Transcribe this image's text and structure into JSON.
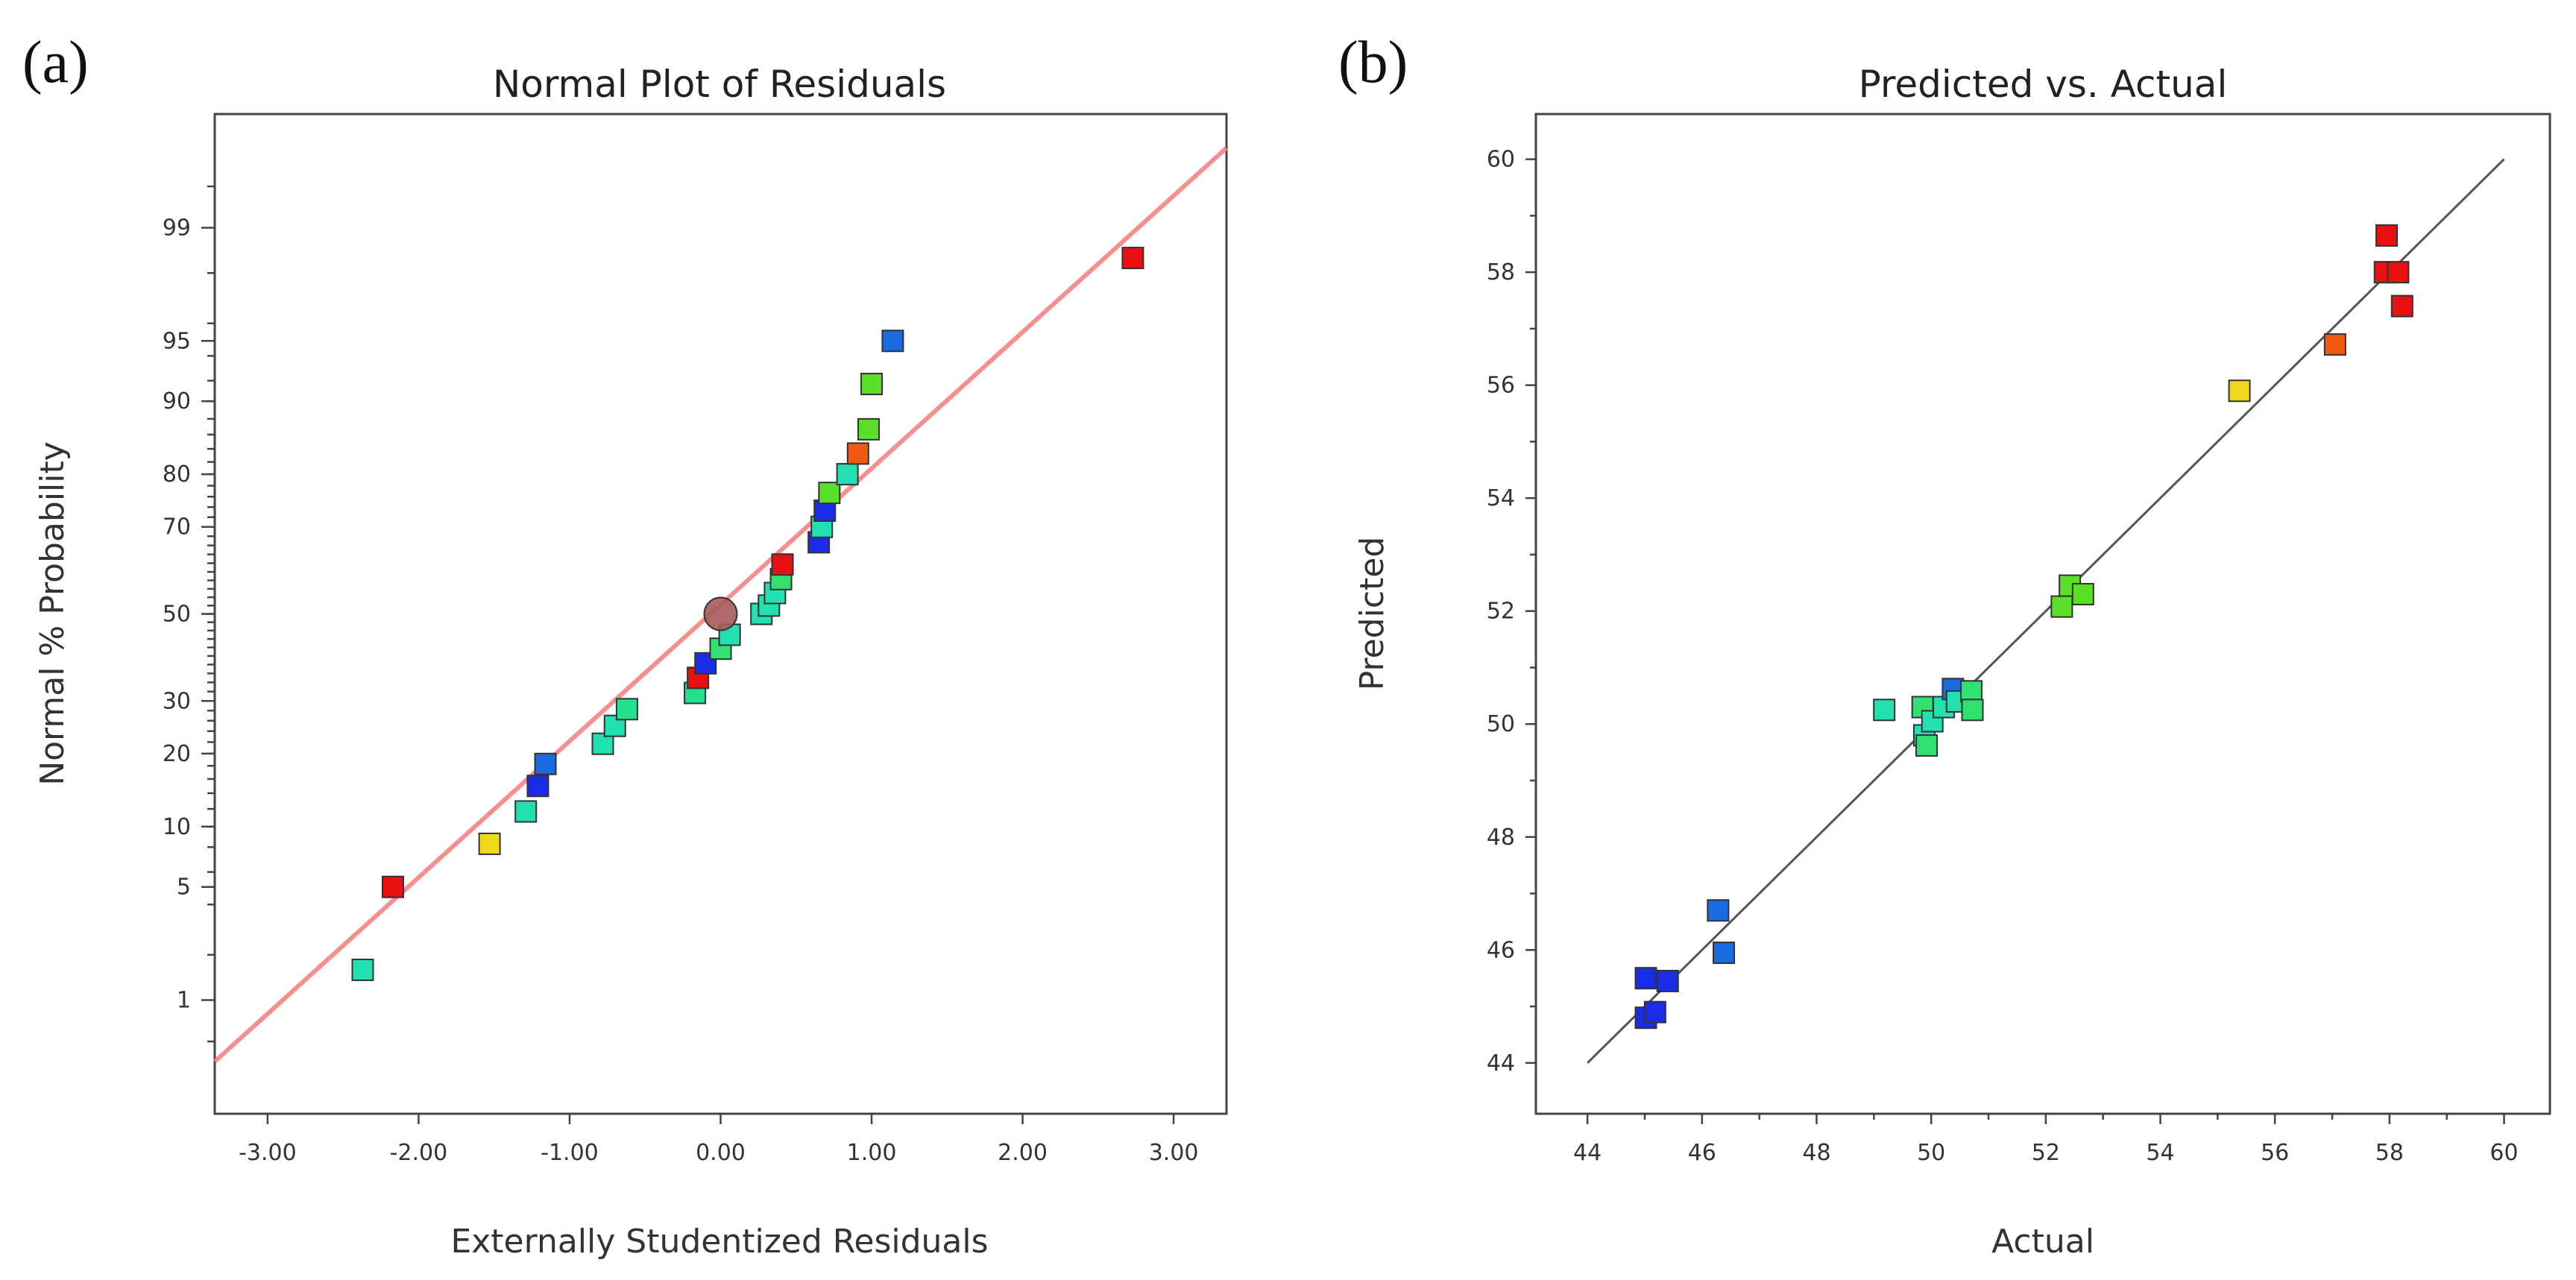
{
  "figure": {
    "panels": [
      {
        "label": "(a)",
        "chart_data": {
          "type": "scatter",
          "title": "Normal Plot of Residuals",
          "xlabel": "Externally Studentized Residuals",
          "ylabel": "Normal % Probability",
          "xlim": [
            -3.35,
            3.35
          ],
          "ylim": [
            0.13,
            99.87
          ],
          "y_scale": "normal-probability",
          "x_ticks": [
            -3,
            -2,
            -1,
            0,
            1,
            2,
            3
          ],
          "x_tick_labels": [
            "-3.00",
            "-2.00",
            "-1.00",
            "0.00",
            "1.00",
            "2.00",
            "3.00"
          ],
          "y_ticks": [
            1,
            5,
            10,
            20,
            30,
            50,
            70,
            80,
            90,
            95,
            99
          ],
          "y_tick_labels": [
            "1",
            "5",
            "10",
            "20",
            "30",
            "50",
            "70",
            "80",
            "90",
            "95",
            "99"
          ],
          "reference_line": {
            "color": "#f47c7c",
            "x": [
              -3.35,
              3.35
            ],
            "y": [
              0.35,
              99.75
            ]
          },
          "center_marker": {
            "x": 0.0,
            "y": 50,
            "color": "#a85a5a"
          },
          "points": [
            {
              "x": -2.37,
              "y": 1.6,
              "color": "#22e0b0"
            },
            {
              "x": -2.17,
              "y": 5.0,
              "color": "#e81010"
            },
            {
              "x": -1.53,
              "y": 8.3,
              "color": "#f2d81a"
            },
            {
              "x": -1.29,
              "y": 11.7,
              "color": "#22e0b0"
            },
            {
              "x": -1.21,
              "y": 15.0,
              "color": "#1a2ce6"
            },
            {
              "x": -1.16,
              "y": 18.3,
              "color": "#1a6ae0"
            },
            {
              "x": -0.78,
              "y": 21.7,
              "color": "#22e0b0"
            },
            {
              "x": -0.7,
              "y": 25.0,
              "color": "#22e0b0"
            },
            {
              "x": -0.62,
              "y": 28.3,
              "color": "#22e090"
            },
            {
              "x": -0.17,
              "y": 31.7,
              "color": "#22e090"
            },
            {
              "x": -0.15,
              "y": 35.0,
              "color": "#e81010"
            },
            {
              "x": -0.1,
              "y": 38.3,
              "color": "#1a2ce6"
            },
            {
              "x": 0.0,
              "y": 41.7,
              "color": "#30e070"
            },
            {
              "x": 0.06,
              "y": 45.0,
              "color": "#22e0b0"
            },
            {
              "x": 0.27,
              "y": 50.0,
              "color": "#22e0b0"
            },
            {
              "x": 0.32,
              "y": 52.0,
              "color": "#22e0b0"
            },
            {
              "x": 0.36,
              "y": 55.0,
              "color": "#22e0b0"
            },
            {
              "x": 0.4,
              "y": 58.3,
              "color": "#30e070"
            },
            {
              "x": 0.41,
              "y": 61.7,
              "color": "#e81010"
            },
            {
              "x": 0.65,
              "y": 66.7,
              "color": "#1a2ce6"
            },
            {
              "x": 0.67,
              "y": 70.0,
              "color": "#22e0b0"
            },
            {
              "x": 0.69,
              "y": 73.3,
              "color": "#1a2ce6"
            },
            {
              "x": 0.72,
              "y": 76.7,
              "color": "#5ae028"
            },
            {
              "x": 0.84,
              "y": 80.0,
              "color": "#22e0b0"
            },
            {
              "x": 0.91,
              "y": 83.3,
              "color": "#ef5a10"
            },
            {
              "x": 0.98,
              "y": 86.7,
              "color": "#5ae028"
            },
            {
              "x": 1.0,
              "y": 91.7,
              "color": "#5ae028"
            },
            {
              "x": 1.14,
              "y": 95.0,
              "color": "#1a6ae0"
            },
            {
              "x": 2.73,
              "y": 98.4,
              "color": "#e81010"
            }
          ]
        }
      },
      {
        "label": "(b)",
        "chart_data": {
          "type": "scatter",
          "title": "Predicted vs. Actual",
          "xlabel": "Actual",
          "ylabel": "Predicted",
          "xlim": [
            43.1,
            60.8
          ],
          "ylim": [
            43.1,
            60.8
          ],
          "x_ticks": [
            44,
            46,
            48,
            50,
            52,
            54,
            56,
            58,
            60
          ],
          "x_tick_labels": [
            "44",
            "46",
            "48",
            "50",
            "52",
            "54",
            "56",
            "58",
            "60"
          ],
          "y_ticks": [
            44,
            46,
            48,
            50,
            52,
            54,
            56,
            58,
            60
          ],
          "y_tick_labels": [
            "44",
            "46",
            "48",
            "50",
            "52",
            "54",
            "56",
            "58",
            "60"
          ],
          "reference_line": {
            "color": "#555555",
            "x": [
              44,
              60
            ],
            "y": [
              44,
              60
            ]
          },
          "points": [
            {
              "x": 45.02,
              "y": 45.5,
              "color": "#1a2ce6"
            },
            {
              "x": 45.4,
              "y": 45.45,
              "color": "#1a2ce6"
            },
            {
              "x": 45.02,
              "y": 44.8,
              "color": "#1a2ce6"
            },
            {
              "x": 45.18,
              "y": 44.9,
              "color": "#1a2ce6"
            },
            {
              "x": 46.28,
              "y": 46.7,
              "color": "#1a6ae0"
            },
            {
              "x": 46.38,
              "y": 45.95,
              "color": "#1a6ae0"
            },
            {
              "x": 49.18,
              "y": 50.25,
              "color": "#22e0b0"
            },
            {
              "x": 49.85,
              "y": 50.3,
              "color": "#30e070"
            },
            {
              "x": 49.88,
              "y": 49.8,
              "color": "#22e0b0"
            },
            {
              "x": 49.92,
              "y": 49.62,
              "color": "#30e070"
            },
            {
              "x": 50.02,
              "y": 50.05,
              "color": "#22e0b0"
            },
            {
              "x": 50.22,
              "y": 50.3,
              "color": "#22e0b0"
            },
            {
              "x": 50.38,
              "y": 50.62,
              "color": "#1a6ae0"
            },
            {
              "x": 50.45,
              "y": 50.4,
              "color": "#22e0b0"
            },
            {
              "x": 50.7,
              "y": 50.58,
              "color": "#30e070"
            },
            {
              "x": 50.72,
              "y": 50.25,
              "color": "#30e070"
            },
            {
              "x": 52.28,
              "y": 52.08,
              "color": "#5ae028"
            },
            {
              "x": 52.42,
              "y": 52.45,
              "color": "#5ae028"
            },
            {
              "x": 52.65,
              "y": 52.3,
              "color": "#5ae028"
            },
            {
              "x": 55.38,
              "y": 55.9,
              "color": "#f2d81a"
            },
            {
              "x": 57.05,
              "y": 56.72,
              "color": "#ef5a10"
            },
            {
              "x": 57.92,
              "y": 58.0,
              "color": "#e81010"
            },
            {
              "x": 57.95,
              "y": 58.65,
              "color": "#e81010"
            },
            {
              "x": 58.15,
              "y": 58.0,
              "color": "#e81010"
            },
            {
              "x": 58.22,
              "y": 57.4,
              "color": "#e81010"
            }
          ]
        }
      }
    ]
  }
}
